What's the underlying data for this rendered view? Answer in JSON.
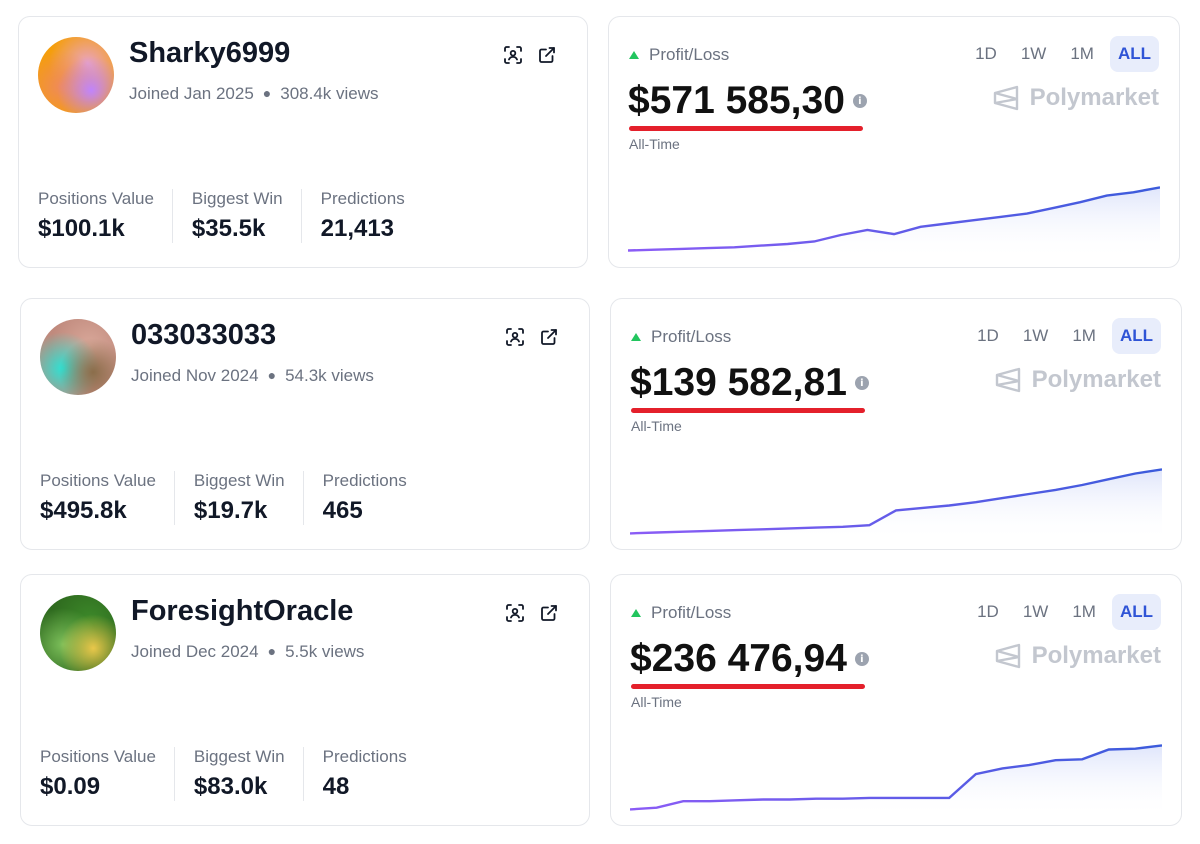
{
  "colors": {
    "line_start": "#8b5cf6",
    "line_end": "#3b5bdb",
    "fill": "#dfe5fb",
    "positive": "#22c55e",
    "underline": "#e4202b",
    "active_tab_bg": "#e8edfb",
    "active_tab_text": "#2f54d6"
  },
  "traders": [
    {
      "avatar_colors": [
        "#f59e0b",
        "#ef8a5a",
        "#c084fc",
        "#e9a4c4"
      ],
      "username": "Sharky6999",
      "joined": "Joined Jan 2025",
      "views": "308.4k views",
      "icons": [
        "scan-face-icon",
        "external-link-icon"
      ],
      "stats": [
        {
          "label": "Positions Value",
          "value": "$100.1k"
        },
        {
          "label": "Biggest Win",
          "value": "$35.5k"
        },
        {
          "label": "Predictions",
          "value": "21,413"
        }
      ],
      "pl_label": "Profit/Loss",
      "amount": "$571 585,30",
      "period_label": "All-Time",
      "tabs": [
        {
          "label": "1D",
          "active": false
        },
        {
          "label": "1W",
          "active": false
        },
        {
          "label": "1M",
          "active": false
        },
        {
          "label": "ALL",
          "active": true
        }
      ],
      "brand": "Polymarket",
      "chart_data": {
        "type": "area",
        "title": "",
        "xlabel": "",
        "ylabel": "",
        "x": [
          0,
          1,
          2,
          3,
          4,
          5,
          6,
          7,
          8,
          9,
          10,
          11,
          12,
          13,
          14,
          15,
          16,
          17,
          18,
          19,
          20
        ],
        "values": [
          0.03,
          0.04,
          0.05,
          0.06,
          0.07,
          0.09,
          0.11,
          0.14,
          0.22,
          0.28,
          0.23,
          0.32,
          0.36,
          0.4,
          0.44,
          0.48,
          0.55,
          0.62,
          0.7,
          0.74,
          0.8
        ],
        "ylim": [
          0,
          1
        ]
      }
    },
    {
      "avatar_colors": [
        "#c08a7d",
        "#2de2d4",
        "#8b6d4a",
        "#d9a89a"
      ],
      "username": "033033033",
      "joined": "Joined Nov 2024",
      "views": "54.3k views",
      "icons": [
        "scan-face-icon",
        "external-link-icon"
      ],
      "stats": [
        {
          "label": "Positions Value",
          "value": "$495.8k"
        },
        {
          "label": "Biggest Win",
          "value": "$19.7k"
        },
        {
          "label": "Predictions",
          "value": "465"
        }
      ],
      "pl_label": "Profit/Loss",
      "amount": "$139 582,81",
      "period_label": "All-Time",
      "tabs": [
        {
          "label": "1D",
          "active": false
        },
        {
          "label": "1W",
          "active": false
        },
        {
          "label": "1M",
          "active": false
        },
        {
          "label": "ALL",
          "active": true
        }
      ],
      "brand": "Polymarket",
      "chart_data": {
        "type": "area",
        "title": "",
        "xlabel": "",
        "ylabel": "",
        "x": [
          0,
          1,
          2,
          3,
          4,
          5,
          6,
          7,
          8,
          9,
          10,
          11,
          12,
          13,
          14,
          15,
          16,
          17,
          18,
          19,
          20
        ],
        "values": [
          0.02,
          0.03,
          0.04,
          0.05,
          0.06,
          0.07,
          0.08,
          0.09,
          0.1,
          0.12,
          0.3,
          0.33,
          0.36,
          0.4,
          0.45,
          0.5,
          0.55,
          0.61,
          0.68,
          0.75,
          0.8
        ],
        "ylim": [
          0,
          1
        ]
      }
    },
    {
      "avatar_colors": [
        "#2f6b1f",
        "#7cbf5a",
        "#e9c74a",
        "#3d8a2a"
      ],
      "username": "ForesightOracle",
      "joined": "Joined Dec 2024",
      "views": "5.5k views",
      "icons": [
        "scan-face-icon",
        "external-link-icon"
      ],
      "stats": [
        {
          "label": "Positions Value",
          "value": "$0.09"
        },
        {
          "label": "Biggest Win",
          "value": "$83.0k"
        },
        {
          "label": "Predictions",
          "value": "48"
        }
      ],
      "pl_label": "Profit/Loss",
      "amount": "$236 476,94",
      "period_label": "All-Time",
      "tabs": [
        {
          "label": "1D",
          "active": false
        },
        {
          "label": "1W",
          "active": false
        },
        {
          "label": "1M",
          "active": false
        },
        {
          "label": "ALL",
          "active": true
        }
      ],
      "brand": "Polymarket",
      "chart_data": {
        "type": "area",
        "title": "",
        "xlabel": "",
        "ylabel": "",
        "x": [
          0,
          1,
          2,
          3,
          4,
          5,
          6,
          7,
          8,
          9,
          10,
          11,
          12,
          13,
          14,
          15,
          16,
          17,
          18,
          19,
          20
        ],
        "values": [
          0.02,
          0.04,
          0.12,
          0.12,
          0.13,
          0.14,
          0.14,
          0.15,
          0.15,
          0.16,
          0.16,
          0.16,
          0.16,
          0.45,
          0.52,
          0.56,
          0.62,
          0.63,
          0.75,
          0.76,
          0.8
        ],
        "ylim": [
          0,
          1
        ]
      }
    }
  ]
}
